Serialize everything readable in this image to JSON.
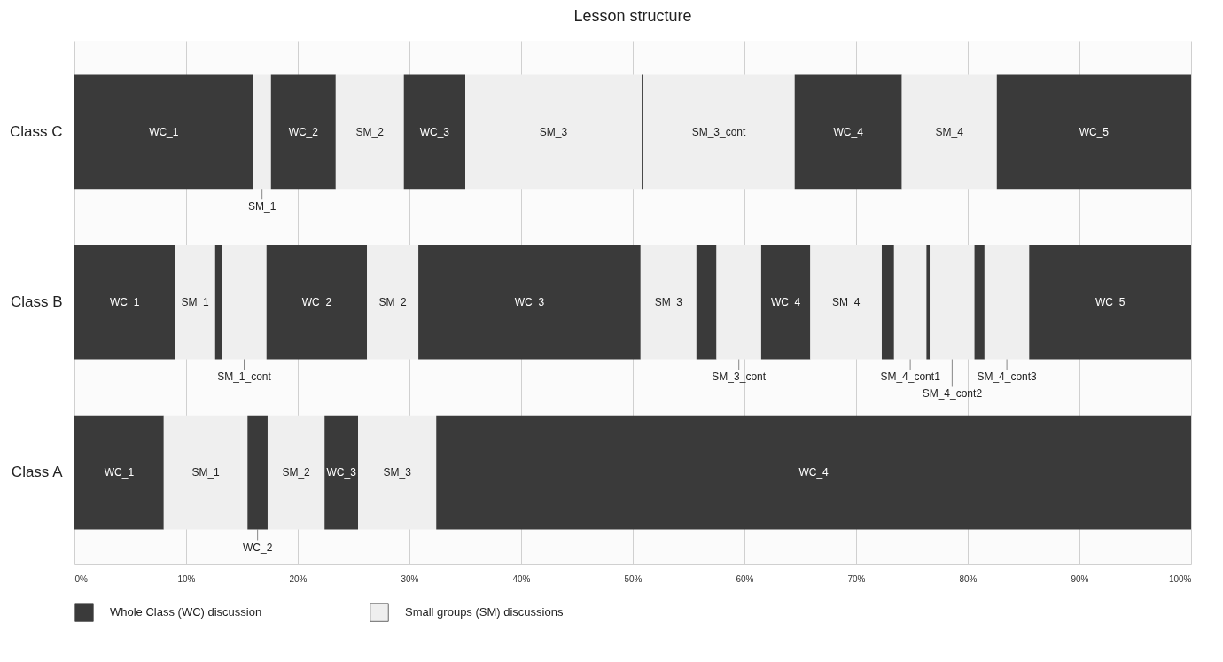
{
  "chart_data": {
    "type": "bar",
    "title": "Lesson structure",
    "orientation": "horizontal",
    "stacked": true,
    "categories": [
      "Class C",
      "Class B",
      "Class A"
    ],
    "xlim": [
      0,
      100
    ],
    "xticks": [
      {
        "value": 0,
        "label": "0%"
      },
      {
        "value": 10,
        "label": "10%"
      },
      {
        "value": 20,
        "label": "20%"
      },
      {
        "value": 30,
        "label": "30%"
      },
      {
        "value": 40,
        "label": "40%"
      },
      {
        "value": 50,
        "label": "50%"
      },
      {
        "value": 60,
        "label": "60%"
      },
      {
        "value": 70,
        "label": "70%"
      },
      {
        "value": 80,
        "label": "80%"
      },
      {
        "value": 90,
        "label": "90%"
      },
      {
        "value": 100,
        "label": "100%"
      }
    ],
    "grid": "x",
    "legend": "bottom",
    "series": [
      {
        "name": "Whole Class (WC) discussion",
        "color": "#3a3a3a",
        "values": [
          16.0,
          9.0,
          8.0
        ]
      },
      {
        "name": "Small groups (SM) discussions",
        "color": "#efefef",
        "values": [
          1.6,
          3.6,
          7.5
        ]
      },
      {
        "color": "#3a3a3a",
        "values": [
          5.8,
          0.6,
          1.8
        ]
      },
      {
        "color": "#efefef",
        "values": [
          6.1,
          4.0,
          5.1
        ]
      },
      {
        "color": "#3a3a3a",
        "values": [
          5.5,
          9.0,
          3.0
        ]
      },
      {
        "color": "#efefef",
        "values": [
          15.8,
          4.6,
          7.0
        ]
      },
      {
        "color": "#3a3a3a",
        "values": [
          0.1,
          19.9,
          67.6
        ]
      },
      {
        "color": "#efefef",
        "values": [
          13.6,
          5.0,
          null
        ]
      },
      {
        "color": "#3a3a3a",
        "values": [
          9.6,
          1.8,
          null
        ]
      },
      {
        "color": "#efefef",
        "values": [
          8.5,
          4.0,
          null
        ]
      },
      {
        "color": "#3a3a3a",
        "values": [
          17.4,
          4.4,
          null
        ]
      },
      {
        "color": "#efefef",
        "values": [
          null,
          6.4,
          null
        ]
      },
      {
        "color": "#3a3a3a",
        "values": [
          null,
          1.1,
          null
        ]
      },
      {
        "color": "#efefef",
        "values": [
          null,
          2.9,
          null
        ]
      },
      {
        "color": "#3a3a3a",
        "values": [
          null,
          0.3,
          null
        ]
      },
      {
        "color": "#efefef",
        "values": [
          null,
          4.0,
          null
        ]
      },
      {
        "color": "#3a3a3a",
        "values": [
          null,
          0.9,
          null
        ]
      },
      {
        "color": "#efefef",
        "values": [
          null,
          4.0,
          null
        ]
      },
      {
        "color": "#3a3a3a",
        "values": [
          null,
          14.5,
          null
        ]
      }
    ],
    "annotations": [
      "WC_1",
      "SM_1",
      "WC_2",
      "SM_2",
      "WC_3",
      "SM_3",
      null,
      "SM_3_cont",
      "WC_4",
      "SM_4",
      "WC_5",
      "WC_1",
      "SM_1",
      null,
      "SM_1_cont",
      "WC_2",
      "SM_2",
      "WC_3",
      "SM_3",
      null,
      "SM_3_cont",
      "WC_4",
      "SM_4",
      null,
      "SM_4_cont1",
      null,
      "SM_4_cont2",
      null,
      "SM_4_cont3",
      "WC_5",
      "WC_1",
      "SM_1",
      "WC_2",
      "SM_2",
      "WC_3",
      "SM_3",
      "WC_4"
    ]
  }
}
